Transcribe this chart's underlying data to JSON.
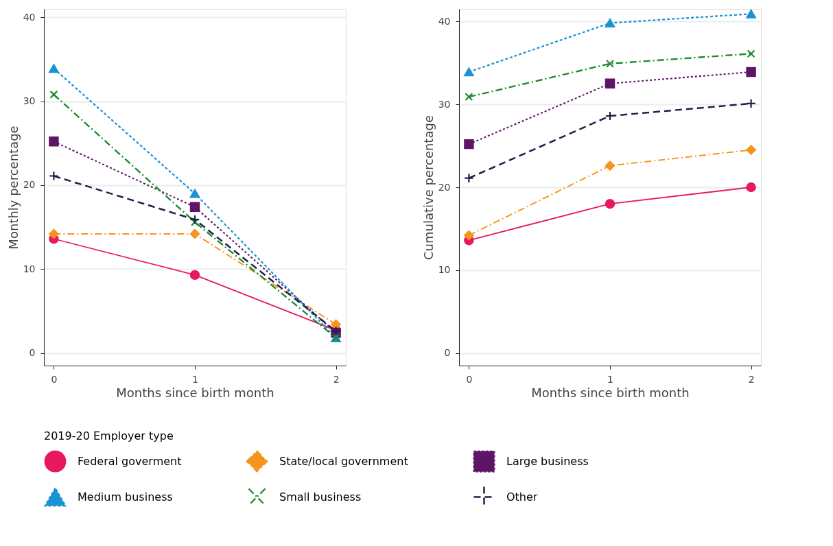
{
  "chart_data": [
    {
      "type": "line",
      "x": [
        0,
        1,
        2
      ],
      "xlabel": "Months since birth month",
      "ylabel": "Monthly percentage",
      "xlim": [
        -0.07,
        2.07
      ],
      "xticks": [
        0,
        1,
        2
      ],
      "ylim": [
        -1.5,
        41
      ],
      "yticks": [
        0,
        10,
        20,
        30,
        40
      ],
      "grid": "y",
      "legend": "bottom",
      "legend_title": "2019-20 Employer type",
      "series": [
        {
          "name": "Federal goverment",
          "color": "#e8185f",
          "marker": "circle",
          "line_style": "solid",
          "values": [
            13.6,
            9.3,
            2.7
          ]
        },
        {
          "name": "State/local government",
          "color": "#f7941d",
          "marker": "diamond",
          "line_style": "dashdot",
          "values": [
            14.2,
            14.2,
            3.4
          ]
        },
        {
          "name": "Large business",
          "color": "#5f1566",
          "marker": "square",
          "line_style": "dotted",
          "values": [
            25.2,
            17.4,
            2.4
          ]
        },
        {
          "name": "Medium business",
          "color": "#1a92d3",
          "marker": "triangle",
          "line_style": "dashed",
          "values": [
            33.9,
            19.0,
            1.8
          ]
        },
        {
          "name": "Small business",
          "color": "#1a8c2e",
          "marker": "cross",
          "line_style": "dashdot",
          "values": [
            30.8,
            15.6,
            1.8
          ]
        },
        {
          "name": "Other",
          "color": "#1f1f4a",
          "marker": "plus",
          "line_style": "longdash",
          "values": [
            21.1,
            15.9,
            2.6
          ]
        }
      ]
    },
    {
      "type": "line",
      "x": [
        0,
        1,
        2
      ],
      "xlabel": "Months since birth month",
      "ylabel": "Cumulative percentage",
      "xlim": [
        -0.07,
        2.07
      ],
      "xticks": [
        0,
        1,
        2
      ],
      "ylim": [
        -1.5,
        41.5
      ],
      "yticks": [
        0,
        10,
        20,
        30,
        40
      ],
      "grid": "y",
      "series": [
        {
          "name": "Federal goverment",
          "color": "#e8185f",
          "marker": "circle",
          "line_style": "solid",
          "values": [
            13.6,
            18.0,
            20.0
          ]
        },
        {
          "name": "State/local government",
          "color": "#f7941d",
          "marker": "diamond",
          "line_style": "dashdot",
          "values": [
            14.2,
            22.6,
            24.5
          ]
        },
        {
          "name": "Large business",
          "color": "#5f1566",
          "marker": "square",
          "line_style": "dotted",
          "values": [
            25.2,
            32.5,
            33.9
          ]
        },
        {
          "name": "Medium business",
          "color": "#1a92d3",
          "marker": "triangle",
          "line_style": "dashed",
          "values": [
            33.9,
            39.8,
            40.9
          ]
        },
        {
          "name": "Small business",
          "color": "#1a8c2e",
          "marker": "cross",
          "line_style": "dashdot",
          "values": [
            30.9,
            34.9,
            36.1
          ]
        },
        {
          "name": "Other",
          "color": "#1f1f4a",
          "marker": "plus",
          "line_style": "longdash",
          "values": [
            21.1,
            28.6,
            30.1
          ]
        }
      ]
    }
  ]
}
